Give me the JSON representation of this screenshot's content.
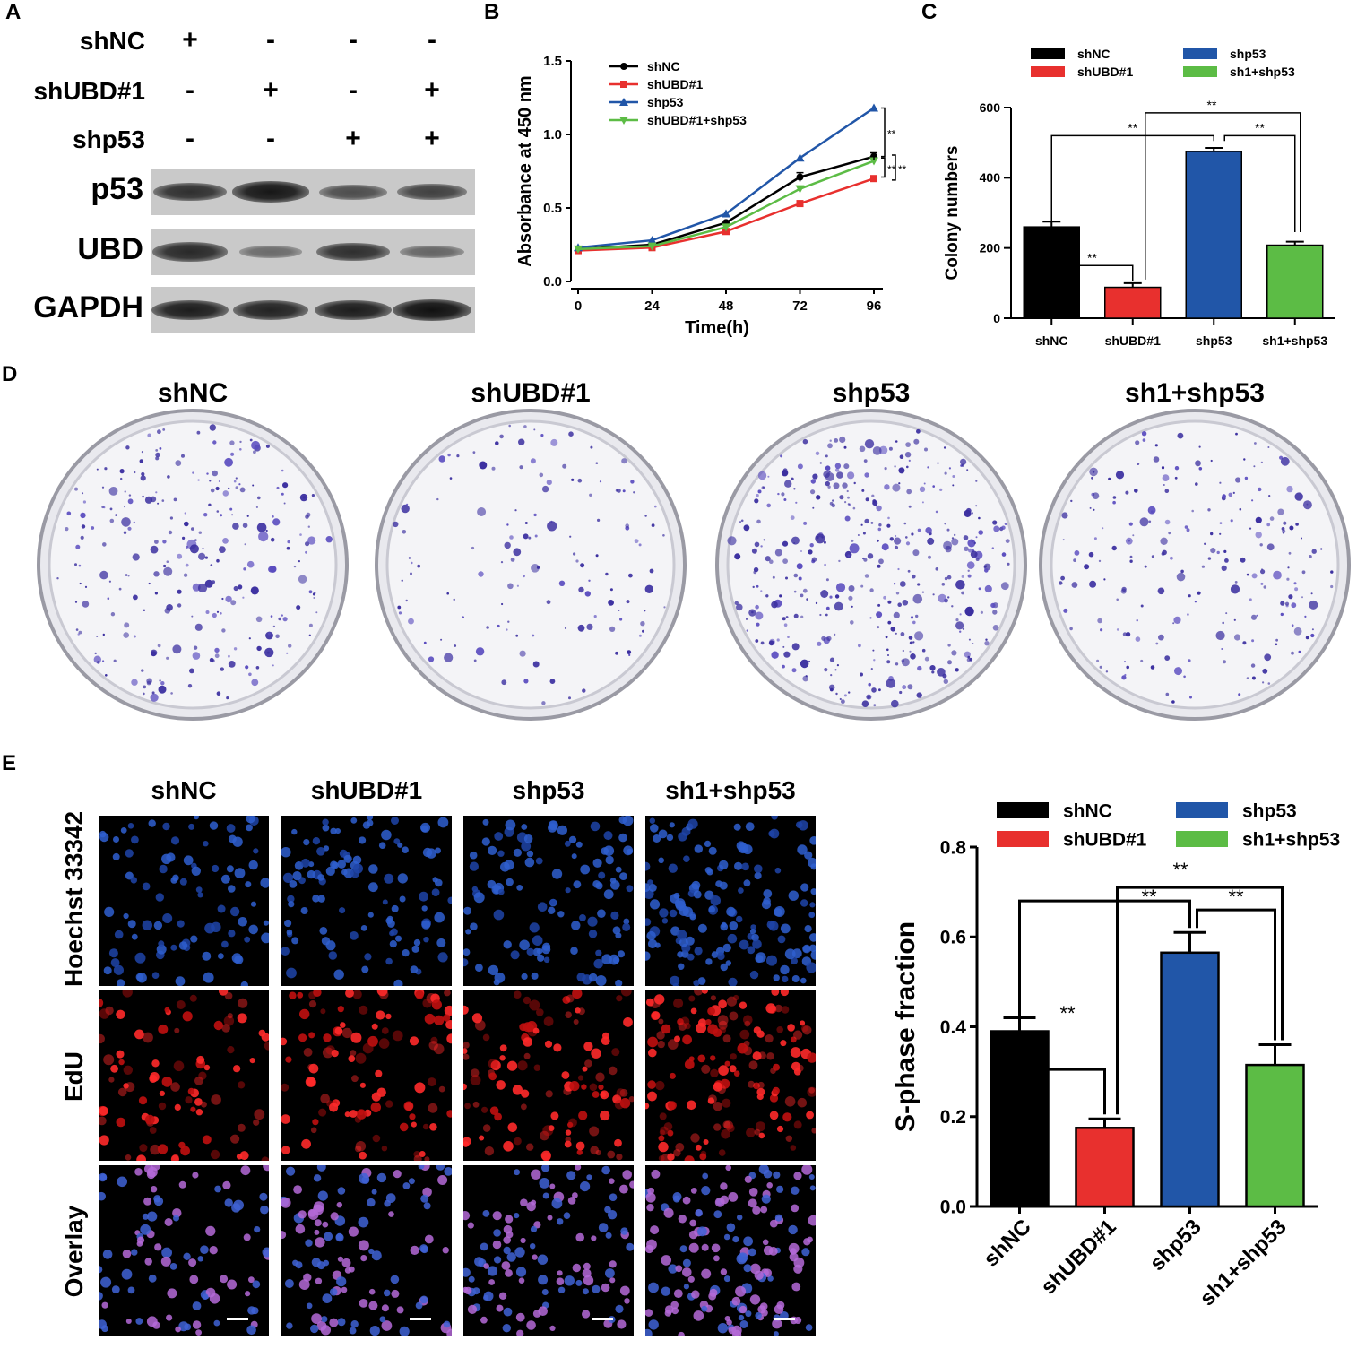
{
  "panels": {
    "a": {
      "letter": "A",
      "rows": [
        {
          "label": "shNC",
          "marks": [
            "+",
            "-",
            "-",
            "-"
          ]
        },
        {
          "label": "shUBD#1",
          "marks": [
            "-",
            "+",
            "-",
            "+"
          ]
        },
        {
          "label": "shp53",
          "marks": [
            "-",
            "-",
            "+",
            "+"
          ]
        }
      ],
      "blots": [
        {
          "label": "p53",
          "intensity": [
            0.75,
            0.95,
            0.5,
            0.6
          ]
        },
        {
          "label": "UBD",
          "intensity": [
            0.8,
            0.25,
            0.75,
            0.3
          ]
        },
        {
          "label": "GAPDH",
          "intensity": [
            0.9,
            0.85,
            0.9,
            1.0
          ]
        }
      ]
    },
    "b": {
      "letter": "B"
    },
    "c": {
      "letter": "C"
    },
    "d": {
      "letter": "D",
      "dishes": [
        {
          "label": "shNC",
          "density": 0.6
        },
        {
          "label": "shUBD#1",
          "density": 0.2
        },
        {
          "label": "shp53",
          "density": 1.0
        },
        {
          "label": "sh1+shp53",
          "density": 0.45
        }
      ]
    },
    "e": {
      "letter": "E",
      "columns": [
        "shNC",
        "shUBD#1",
        "shp53",
        "sh1+shp53"
      ],
      "rows": [
        "Hoechst 33342",
        "EdU",
        "Overlay"
      ]
    }
  },
  "colors": {
    "shNC": "#000000",
    "shUBD#1": "#e8302e",
    "shp53": "#2156a8",
    "sh1+shp53": "#5cbc45"
  },
  "chart_data": [
    {
      "type": "line",
      "panel": "B",
      "xlabel": "Time(h)",
      "ylabel": "Absorbance at 450 nm",
      "x": [
        0,
        24,
        48,
        72,
        96
      ],
      "xticks": [
        "0",
        "24",
        "48",
        "72",
        "96"
      ],
      "ylim": [
        0,
        1.5
      ],
      "yticks": [
        "0.0",
        "0.5",
        "1.0",
        "1.5"
      ],
      "legend_position": "top-left",
      "series": [
        {
          "name": "shNC",
          "values": [
            0.22,
            0.25,
            0.4,
            0.71,
            0.85
          ],
          "marker": "circle",
          "color": "#000000"
        },
        {
          "name": "shUBD#1",
          "values": [
            0.21,
            0.23,
            0.34,
            0.53,
            0.7
          ],
          "marker": "square",
          "color": "#e8302e"
        },
        {
          "name": "shp53",
          "values": [
            0.23,
            0.28,
            0.46,
            0.84,
            1.18
          ],
          "marker": "triangle",
          "color": "#2156a8"
        },
        {
          "name": "shUBD#1+shp53",
          "values": [
            0.22,
            0.24,
            0.37,
            0.63,
            0.82
          ],
          "marker": "triangle-down",
          "color": "#5cbc45"
        }
      ],
      "annotations": [
        "**",
        "**",
        "**"
      ]
    },
    {
      "type": "bar",
      "panel": "C",
      "categories": [
        "shNC",
        "shUBD#1",
        "shp53",
        "sh1+shp53"
      ],
      "values": [
        260,
        88,
        475,
        208
      ],
      "errors": [
        15,
        12,
        10,
        10
      ],
      "ylabel": "Colony numbers",
      "ylim": [
        0,
        600
      ],
      "yticks": [
        "0",
        "200",
        "400",
        "600"
      ],
      "legend": [
        "shNC",
        "shUBD#1",
        "shp53",
        "sh1+shp53"
      ],
      "legend_position": "top",
      "annotations": [
        "**",
        "**",
        "**",
        "**"
      ]
    },
    {
      "type": "bar",
      "panel": "E",
      "categories": [
        "shNC",
        "shUBD#1",
        "shp53",
        "sh1+shp53"
      ],
      "values": [
        0.39,
        0.175,
        0.565,
        0.315
      ],
      "errors": [
        0.03,
        0.02,
        0.045,
        0.045
      ],
      "ylabel": "S-phase fraction",
      "ylim": [
        0,
        0.8
      ],
      "yticks": [
        "0.0",
        "0.2",
        "0.4",
        "0.6",
        "0.8"
      ],
      "legend": [
        "shNC",
        "shUBD#1",
        "shp53",
        "sh1+shp53"
      ],
      "legend_position": "top",
      "annotations": [
        "**",
        "**",
        "**",
        "**"
      ]
    }
  ]
}
